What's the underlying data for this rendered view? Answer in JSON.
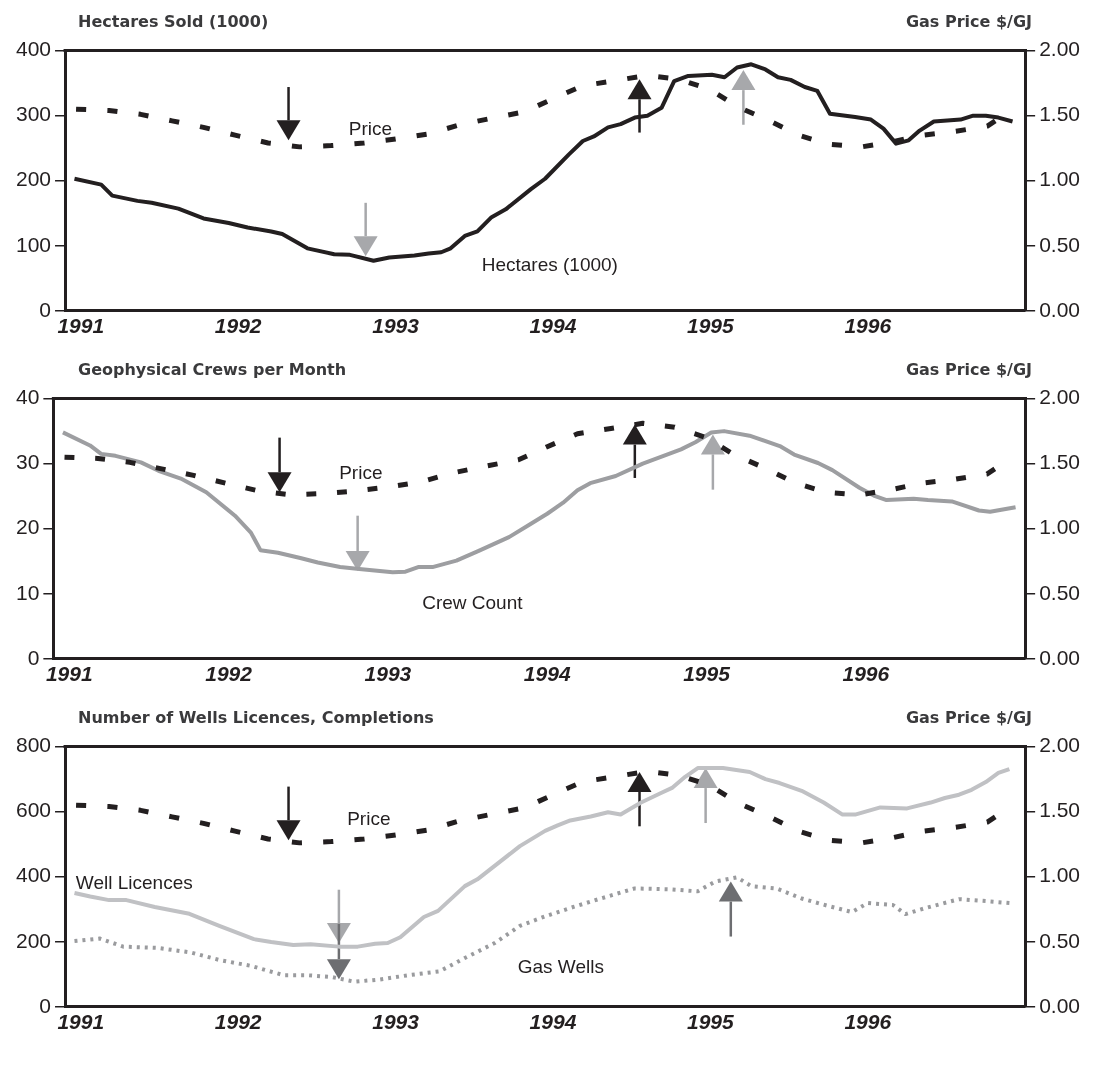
{
  "chart_data": [
    {
      "type": "line",
      "title": "Hectares Sold (1000)",
      "y2label": "Gas Price $/GJ",
      "xlim": [
        1990.9,
        1997
      ],
      "xticks": [
        1991,
        1992,
        1993,
        1994,
        1995,
        1996
      ],
      "ylim": [
        0,
        400
      ],
      "yticks": [
        0,
        100,
        200,
        300,
        400
      ],
      "y2lim": [
        0,
        2
      ],
      "y2ticks": [
        {
          "value": 0,
          "label": "0.00"
        },
        {
          "value": 0.5,
          "label": "0.50"
        },
        {
          "value": 1,
          "label": "1.00"
        },
        {
          "value": 1.5,
          "label": "1.50"
        },
        {
          "value": 2,
          "label": "2.00"
        }
      ],
      "marker": "none",
      "series": [
        {
          "name": "Price",
          "color": "#231f20",
          "axis": "y2",
          "line_style": "dashed",
          "x": [
            1990.97,
            1991.18,
            1991.38,
            1991.58,
            1991.78,
            1991.98,
            1992.19,
            1992.39,
            1992.59,
            1992.8,
            1993,
            1993.21,
            1993.41,
            1993.61,
            1993.82,
            1994,
            1994.19,
            1994.4,
            1994.6,
            1994.8,
            1995,
            1995.17,
            1995.36,
            1995.56,
            1995.75,
            1995.96,
            1996.16,
            1996.35,
            1996.56,
            1996.76,
            1996.81
          ],
          "values": [
            1.55,
            1.54,
            1.51,
            1.46,
            1.41,
            1.35,
            1.29,
            1.26,
            1.27,
            1.29,
            1.32,
            1.36,
            1.43,
            1.48,
            1.53,
            1.63,
            1.73,
            1.77,
            1.81,
            1.78,
            1.7,
            1.57,
            1.47,
            1.35,
            1.28,
            1.26,
            1.3,
            1.35,
            1.38,
            1.42,
            1.46
          ]
        },
        {
          "name": "Hectares (1000)",
          "color": "#231f20",
          "line_style": "solid",
          "x": [
            1990.96,
            1991.13,
            1991.2,
            1991.36,
            1991.45,
            1991.62,
            1991.78,
            1991.94,
            1992.06,
            1992.21,
            1992.28,
            1992.44,
            1992.61,
            1992.71,
            1992.86,
            1992.96,
            1993.12,
            1993.21,
            1993.29,
            1993.35,
            1993.44,
            1993.52,
            1993.61,
            1993.7,
            1993.86,
            1993.95,
            1994.1,
            1994.19,
            1994.26,
            1994.35,
            1994.43,
            1994.52,
            1994.6,
            1994.69,
            1994.77,
            1994.86,
            1995.01,
            1995.09,
            1995.17,
            1995.26,
            1995.35,
            1995.43,
            1995.51,
            1995.6,
            1995.68,
            1995.76,
            1995.92,
            1996.02,
            1996.1,
            1996.18,
            1996.26,
            1996.33,
            1996.42,
            1996.59,
            1996.67,
            1996.75,
            1996.83,
            1996.92
          ],
          "values": [
            203,
            194,
            177,
            169,
            166,
            157,
            142,
            135,
            128,
            122,
            118,
            96,
            87,
            86,
            77,
            82,
            85,
            88,
            90,
            96,
            115,
            122,
            144,
            156,
            187,
            203,
            240,
            261,
            268,
            282,
            287,
            297,
            300,
            312,
            353,
            361,
            363,
            359,
            374,
            379,
            371,
            359,
            355,
            344,
            338,
            303,
            298,
            294,
            280,
            257,
            262,
            277,
            291,
            294,
            300,
            300,
            297,
            291
          ]
        }
      ]
    },
    {
      "type": "line",
      "title": "Geophysical Crews per Month",
      "y2label": "Gas Price $/GJ",
      "xlim": [
        1990.9,
        1997
      ],
      "xticks": [
        1991,
        1992,
        1993,
        1994,
        1995,
        1996
      ],
      "ylim": [
        0,
        40
      ],
      "yticks": [
        0,
        10,
        20,
        30,
        40
      ],
      "y2lim": [
        0,
        2
      ],
      "y2ticks": [
        {
          "value": 0,
          "label": "0.00"
        },
        {
          "value": 0.5,
          "label": "0.50"
        },
        {
          "value": 1,
          "label": "1.00"
        },
        {
          "value": 1.5,
          "label": "1.50"
        },
        {
          "value": 2,
          "label": "2.00"
        }
      ],
      "marker": "none",
      "series": [
        {
          "name": "Price",
          "color": "#231f20",
          "axis": "y2",
          "line_style": "dashed",
          "x": [
            1990.97,
            1991.18,
            1991.38,
            1991.58,
            1991.78,
            1991.98,
            1992.19,
            1992.39,
            1992.59,
            1992.8,
            1993,
            1993.21,
            1993.41,
            1993.61,
            1993.82,
            1994,
            1994.19,
            1994.4,
            1994.6,
            1994.8,
            1995,
            1995.17,
            1995.36,
            1995.56,
            1995.75,
            1995.96,
            1996.16,
            1996.35,
            1996.56,
            1996.76,
            1996.81
          ],
          "values": [
            1.55,
            1.54,
            1.51,
            1.46,
            1.41,
            1.35,
            1.29,
            1.26,
            1.27,
            1.29,
            1.32,
            1.36,
            1.43,
            1.48,
            1.53,
            1.63,
            1.73,
            1.77,
            1.81,
            1.78,
            1.7,
            1.57,
            1.47,
            1.35,
            1.28,
            1.26,
            1.3,
            1.35,
            1.38,
            1.42,
            1.46
          ]
        },
        {
          "name": "Crew Count",
          "color": "#9d9ea1",
          "line_style": "solid",
          "x": [
            1990.96,
            1991.13,
            1991.2,
            1991.29,
            1991.45,
            1991.56,
            1991.7,
            1991.86,
            1992.04,
            1992.14,
            1992.2,
            1992.31,
            1992.45,
            1992.56,
            1992.7,
            1992.82,
            1993.03,
            1993.11,
            1993.19,
            1993.28,
            1993.43,
            1993.57,
            1993.76,
            1993.88,
            1994,
            1994.1,
            1994.19,
            1994.27,
            1994.43,
            1994.6,
            1994.84,
            1994.93,
            1995.03,
            1995.11,
            1995.27,
            1995.46,
            1995.55,
            1995.7,
            1995.79,
            1995.96,
            1996.05,
            1996.13,
            1996.3,
            1996.39,
            1996.54,
            1996.71,
            1996.78,
            1996.94
          ],
          "values": [
            34.8,
            32.8,
            31.5,
            31.2,
            30.2,
            28.9,
            27.7,
            25.6,
            22,
            19.4,
            16.7,
            16.3,
            15.5,
            14.8,
            14.1,
            13.8,
            13.3,
            13.4,
            14.1,
            14.1,
            15.1,
            16.6,
            18.7,
            20.5,
            22.3,
            24,
            25.9,
            27,
            28.1,
            30,
            32.2,
            33.3,
            34.8,
            35,
            34.3,
            32.7,
            31.4,
            30.1,
            29,
            26.3,
            25.1,
            24.4,
            24.6,
            24.4,
            24.2,
            22.8,
            22.6,
            23.3
          ]
        }
      ]
    },
    {
      "type": "line",
      "title": "Number of Wells Licences, Completions",
      "y2label": "Gas Price $/GJ",
      "xlim": [
        1990.9,
        1997
      ],
      "xticks": [
        1991,
        1992,
        1993,
        1994,
        1995,
        1996
      ],
      "ylim": [
        0,
        800
      ],
      "yticks": [
        0,
        200,
        400,
        600,
        800
      ],
      "y2lim": [
        0,
        2
      ],
      "y2ticks": [
        {
          "value": 0,
          "label": "0.00"
        },
        {
          "value": 0.5,
          "label": "0.50"
        },
        {
          "value": 1,
          "label": "1.00"
        },
        {
          "value": 1.5,
          "label": "1.50"
        },
        {
          "value": 2,
          "label": "2.00"
        }
      ],
      "marker": "none",
      "series": [
        {
          "name": "Price",
          "color": "#231f20",
          "axis": "y2",
          "line_style": "dashed",
          "x": [
            1990.97,
            1991.18,
            1991.38,
            1991.58,
            1991.78,
            1991.98,
            1992.19,
            1992.39,
            1992.59,
            1992.8,
            1993,
            1993.21,
            1993.41,
            1993.61,
            1993.82,
            1994,
            1994.19,
            1994.4,
            1994.6,
            1994.8,
            1995,
            1995.17,
            1995.36,
            1995.56,
            1995.75,
            1995.96,
            1996.16,
            1996.35,
            1996.56,
            1996.76,
            1996.81
          ],
          "values": [
            1.55,
            1.54,
            1.51,
            1.46,
            1.41,
            1.35,
            1.29,
            1.26,
            1.27,
            1.29,
            1.32,
            1.36,
            1.43,
            1.48,
            1.53,
            1.63,
            1.73,
            1.77,
            1.81,
            1.78,
            1.7,
            1.57,
            1.47,
            1.35,
            1.28,
            1.26,
            1.3,
            1.35,
            1.38,
            1.42,
            1.46
          ]
        },
        {
          "name": "Well Licences",
          "color": "#c0c1c4",
          "line_style": "solid",
          "x": [
            1990.96,
            1991.06,
            1991.18,
            1991.29,
            1991.47,
            1991.69,
            1991.88,
            1992.1,
            1992.21,
            1992.35,
            1992.46,
            1992.64,
            1992.76,
            1992.87,
            1992.95,
            1993.03,
            1993.18,
            1993.27,
            1993.44,
            1993.52,
            1993.79,
            1993.95,
            1994.03,
            1994.11,
            1994.24,
            1994.35,
            1994.43,
            1994.56,
            1994.69,
            1994.76,
            1994.84,
            1994.92,
            1995.08,
            1995.25,
            1995.35,
            1995.44,
            1995.58,
            1995.72,
            1995.84,
            1995.92,
            1996.08,
            1996.25,
            1996.4,
            1996.49,
            1996.58,
            1996.66,
            1996.75,
            1996.83,
            1996.9
          ],
          "values": [
            350,
            339,
            328,
            328,
            307,
            286,
            249,
            208,
            199,
            190,
            192,
            185,
            185,
            194,
            196,
            214,
            276,
            295,
            371,
            392,
            494,
            541,
            558,
            573,
            585,
            598,
            591,
            628,
            658,
            674,
            707,
            734,
            734,
            722,
            700,
            688,
            664,
            628,
            591,
            591,
            613,
            610,
            628,
            642,
            652,
            667,
            691,
            719,
            731
          ]
        },
        {
          "name": "Gas Wells",
          "color": "#9a9b9e",
          "line_style": "dotted",
          "x": [
            1990.96,
            1991.12,
            1991.27,
            1991.49,
            1991.7,
            1991.88,
            1992.08,
            1992.29,
            1992.44,
            1992.6,
            1992.74,
            1992.9,
            1993.08,
            1993.28,
            1993.44,
            1993.63,
            1993.79,
            1993.95,
            1994.13,
            1994.29,
            1994.52,
            1994.75,
            1994.92,
            1995.03,
            1995.17,
            1995.26,
            1995.42,
            1995.58,
            1995.75,
            1995.9,
            1996,
            1996.16,
            1996.24,
            1996.37,
            1996.58,
            1996.75,
            1996.9
          ],
          "values": [
            202,
            210,
            185,
            181,
            167,
            144,
            126,
            97,
            97,
            91,
            77,
            84,
            97,
            109,
            150,
            196,
            249,
            278,
            307,
            331,
            364,
            361,
            355,
            385,
            398,
            371,
            364,
            333,
            310,
            291,
            319,
            313,
            285,
            304,
            331,
            325,
            319
          ]
        }
      ]
    }
  ]
}
